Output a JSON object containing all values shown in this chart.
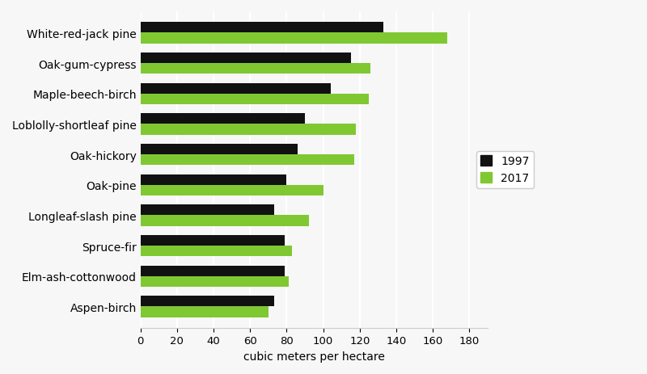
{
  "categories": [
    "White-red-jack pine",
    "Oak-gum-cypress",
    "Maple-beech-birch",
    "Loblolly-shortleaf pine",
    "Oak-hickory",
    "Oak-pine",
    "Longleaf-slash pine",
    "Spruce-fir",
    "Elm-ash-cottonwood",
    "Aspen-birch"
  ],
  "values_1997": [
    133,
    115,
    104,
    90,
    86,
    80,
    73,
    79,
    79,
    73
  ],
  "values_2017": [
    168,
    126,
    125,
    118,
    117,
    100,
    92,
    83,
    81,
    70
  ],
  "color_1997": "#111111",
  "color_2017": "#80c832",
  "xlabel": "cubic meters per hectare",
  "xlim": [
    0,
    190
  ],
  "xticks": [
    0,
    20,
    40,
    60,
    80,
    100,
    120,
    140,
    160,
    180
  ],
  "bar_height": 0.35,
  "legend_labels": [
    "1997",
    "2017"
  ],
  "background_color": "#f7f7f7",
  "grid_color": "#ffffff",
  "label_fontsize": 10,
  "tick_fontsize": 9.5
}
